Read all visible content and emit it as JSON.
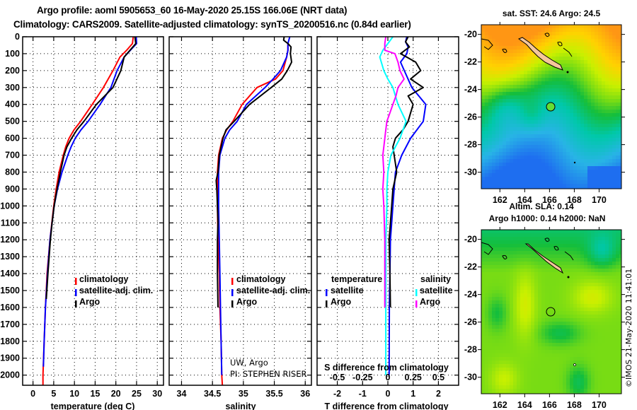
{
  "header": {
    "title_line1": "Argo profile: aoml 5905653_60 16-May-2020 25.15S 166.06E (NRT data)",
    "title_line2": "Climatology: CARS2009. Satellite-adjusted climatology: synTS_20200516.nc (0.84d earlier)"
  },
  "colors": {
    "climatology": "#ff0000",
    "satellite_adj": "#0000ff",
    "argo": "#000000",
    "salinity_satellite": "#00ffff",
    "salinity_argo": "#ff00ff",
    "land": "#f5c79c"
  },
  "chart_data": [
    {
      "type": "line",
      "id": "temperature-profile",
      "xlabel": "temperature (deg C)",
      "ylabel": "",
      "xlim": [
        -2.5,
        31.5
      ],
      "ylim": [
        2060,
        0
      ],
      "xticks": [
        "0",
        "5",
        "10",
        "15",
        "20",
        "25",
        "30"
      ],
      "xtick_values": [
        0,
        5,
        10,
        15,
        20,
        25,
        30
      ],
      "yticks": [
        "0",
        "100",
        "200",
        "300",
        "400",
        "500",
        "600",
        "700",
        "800",
        "900",
        "1000",
        "1100",
        "1200",
        "1300",
        "1400",
        "1500",
        "1600",
        "1700",
        "1800",
        "1900",
        "2000"
      ],
      "ytick_values": [
        0,
        100,
        200,
        300,
        400,
        500,
        600,
        700,
        800,
        900,
        1000,
        1100,
        1200,
        1300,
        1400,
        1500,
        1600,
        1700,
        1800,
        1900,
        2000
      ],
      "grid": true,
      "legend": {
        "position": "center-right",
        "entries": [
          "climatology",
          "satellite-adj. clim.",
          "Argo"
        ]
      },
      "series": [
        {
          "name": "climatology",
          "color": "#ff0000",
          "depth": [
            0,
            40,
            80,
            120,
            200,
            300,
            400,
            500,
            550,
            600,
            650,
            700,
            800,
            900,
            1000,
            1200,
            1400,
            1600,
            1800,
            2000,
            2060
          ],
          "values": [
            24.2,
            24.0,
            22.6,
            21.0,
            19.3,
            17.0,
            14.3,
            11.5,
            9.9,
            8.7,
            7.9,
            7.3,
            6.3,
            5.6,
            5.0,
            4.1,
            3.4,
            3.0,
            2.7,
            2.4,
            2.4
          ]
        },
        {
          "name": "satellite-adj. clim.",
          "color": "#0000ff",
          "depth": [
            0,
            40,
            80,
            120,
            200,
            300,
            400,
            500,
            550,
            600,
            650,
            700,
            800,
            900,
            1000,
            1200,
            1400,
            1600,
            1800,
            1950
          ],
          "values": [
            24.9,
            25.0,
            23.5,
            22.0,
            20.3,
            18.8,
            16.2,
            13.3,
            11.6,
            10.2,
            9.2,
            8.4,
            7.0,
            5.9,
            5.1,
            4.1,
            3.5,
            3.0,
            2.7,
            2.5
          ]
        },
        {
          "name": "Argo",
          "color": "#000000",
          "depth": [
            0,
            40,
            80,
            120,
            200,
            300,
            400,
            500,
            550,
            600,
            650,
            700,
            800,
            900,
            1000,
            1100,
            1200,
            1400,
            1550
          ],
          "values": [
            24.6,
            24.8,
            23.4,
            22.0,
            21.2,
            19.3,
            15.3,
            12.3,
            10.6,
            9.3,
            8.2,
            7.5,
            6.6,
            5.8,
            5.1,
            4.6,
            4.2,
            3.6,
            3.2
          ]
        }
      ]
    },
    {
      "type": "line",
      "id": "salinity-profile",
      "xlabel": "salinity",
      "xlim": [
        33.8,
        36.1
      ],
      "ylim": [
        2060,
        0
      ],
      "xticks": [
        "34",
        "34.5",
        "35",
        "35.5",
        "36"
      ],
      "xtick_values": [
        34,
        34.5,
        35,
        35.5,
        36
      ],
      "grid": true,
      "legend": {
        "position": "center-right",
        "entries": [
          "climatology",
          "satellite-adj. clim.",
          "Argo"
        ]
      },
      "annotation": [
        "UW, Argo",
        "PI: STEPHEN RISER"
      ],
      "series": [
        {
          "name": "climatology",
          "color": "#ff0000",
          "depth": [
            40,
            80,
            120,
            200,
            250,
            300,
            400,
            500,
            550,
            600,
            700,
            800,
            900,
            1000,
            1200,
            1400,
            1600,
            1800,
            2000,
            2060
          ],
          "values": [
            35.72,
            35.72,
            35.7,
            35.64,
            35.52,
            35.22,
            34.98,
            34.83,
            34.73,
            34.66,
            34.6,
            34.58,
            34.58,
            34.58,
            34.59,
            34.61,
            34.62,
            34.64,
            34.65,
            34.66
          ]
        },
        {
          "name": "satellite-adj. clim.",
          "color": "#0000ff",
          "depth": [
            0,
            40,
            80,
            120,
            200,
            250,
            300,
            400,
            500,
            550,
            600,
            700,
            800,
            900,
            1000,
            1200,
            1400,
            1600,
            1800,
            2000
          ],
          "values": [
            35.75,
            35.72,
            35.72,
            35.7,
            35.6,
            35.48,
            35.35,
            35.05,
            34.9,
            34.78,
            34.7,
            34.62,
            34.6,
            34.6,
            34.6,
            34.61,
            34.62,
            34.63,
            34.64,
            34.65
          ]
        },
        {
          "name": "Argo",
          "color": "#000000",
          "depth": [
            0,
            20,
            40,
            60,
            100,
            150,
            200,
            250,
            300,
            400,
            500,
            550,
            600,
            700,
            800,
            850,
            900,
            1000,
            1100,
            1200,
            1400,
            1600
          ],
          "values": [
            35.66,
            35.65,
            35.72,
            35.77,
            35.76,
            35.78,
            35.71,
            35.62,
            35.45,
            35.1,
            34.85,
            34.72,
            34.67,
            34.61,
            34.59,
            34.56,
            34.57,
            34.58,
            34.59,
            34.58,
            34.58,
            34.59
          ]
        }
      ]
    },
    {
      "type": "line",
      "id": "difference-profile",
      "xlabel": "T difference from climatology",
      "xlabel_top": "S difference from climatology",
      "xlim": [
        -2.8,
        2.8
      ],
      "xlim_salinity": [
        -0.7,
        0.7
      ],
      "ylim": [
        2060,
        0
      ],
      "xticks": [
        "-2",
        "-1",
        "0",
        "1",
        "2"
      ],
      "xtick_values": [
        -2,
        -1,
        0,
        1,
        2
      ],
      "xticks_salinity": [
        "-0.5",
        "-0.25",
        "0",
        "0.25",
        "0.5"
      ],
      "xtick_values_salinity": [
        -0.5,
        -0.25,
        0,
        0.25,
        0.5
      ],
      "grid": true,
      "legend": {
        "temperature_title": "temperature",
        "salinity_title": "salinity",
        "temperature_entries": [
          "satellite",
          "Argo"
        ],
        "salinity_entries": [
          "satellite",
          "Argo"
        ]
      },
      "series": [
        {
          "name": "temperature satellite",
          "color": "#0000ff",
          "depth": [
            0,
            30,
            60,
            100,
            150,
            200,
            300,
            400,
            500,
            600,
            700,
            800,
            900,
            1000,
            1100,
            1200,
            1400,
            1600,
            2000
          ],
          "values": [
            0.75,
            0.7,
            0.8,
            0.75,
            0.5,
            0.65,
            0.95,
            1.5,
            1.4,
            0.9,
            0.55,
            0.3,
            0.25,
            0.2,
            0.15,
            0.1,
            0.08,
            0.06,
            0.05
          ]
        },
        {
          "name": "temperature Argo",
          "color": "#000000",
          "depth": [
            0,
            30,
            60,
            100,
            150,
            200,
            250,
            300,
            350,
            400,
            450,
            500,
            550,
            600,
            650,
            700,
            800,
            900,
            1000,
            1100,
            1200,
            1400,
            1600
          ],
          "values": [
            0.8,
            0.7,
            0.85,
            0.5,
            1.1,
            1.3,
            0.9,
            1.4,
            0.8,
            1.0,
            0.9,
            0.8,
            0.6,
            0.3,
            0.2,
            0.25,
            0.35,
            0.2,
            0.15,
            0.1,
            0.05,
            0.08,
            0.1
          ]
        },
        {
          "name": "salinity satellite",
          "color": "#00ffff",
          "depth": [
            0,
            40,
            80,
            120,
            200,
            250,
            300,
            400,
            500,
            600,
            700,
            800,
            900,
            1000,
            1200,
            1400,
            1600,
            1800,
            2000
          ],
          "values": [
            0.05,
            0.0,
            -0.05,
            -0.08,
            -0.04,
            0.0,
            0.05,
            0.1,
            0.18,
            0.12,
            0.03,
            0.0,
            -0.01,
            -0.01,
            -0.02,
            -0.02,
            -0.02,
            -0.02,
            -0.02
          ]
        },
        {
          "name": "salinity Argo",
          "color": "#ff00ff",
          "depth": [
            0,
            40,
            80,
            100,
            150,
            200,
            250,
            300,
            350,
            400,
            450,
            500,
            550,
            600,
            650,
            700,
            800,
            900,
            1000,
            1200,
            1400,
            1600
          ],
          "values": [
            -0.02,
            -0.03,
            -0.03,
            0.07,
            0.1,
            0.12,
            0.16,
            0.1,
            0.08,
            0.05,
            0.02,
            -0.01,
            -0.02,
            -0.03,
            -0.04,
            -0.05,
            -0.04,
            -0.05,
            -0.04,
            -0.03,
            -0.03,
            -0.03
          ]
        }
      ]
    }
  ],
  "maps": {
    "sst_map": {
      "title": "sat. SST: 24.6 Argo: 24.5",
      "lat_ticks": [
        "-20",
        "-22",
        "-24",
        "-26",
        "-28",
        "-30"
      ],
      "lon_ticks": [
        "162",
        "164",
        "166",
        "168",
        "170"
      ],
      "argo_marker_label": "Argo float position"
    },
    "sla_map": {
      "title_line1": "Altim. SLA: 0.14",
      "title_line2": "Argo h1000: 0.14 h2000: NaN",
      "lat_ticks": [
        "-20",
        "-22",
        "-24",
        "-26",
        "-28",
        "-30"
      ],
      "lon_ticks": [
        "162",
        "164",
        "166",
        "168",
        "170"
      ]
    }
  },
  "footer": {
    "credit_stamp": "©IMOS 21-May-2020 11:41:01"
  }
}
